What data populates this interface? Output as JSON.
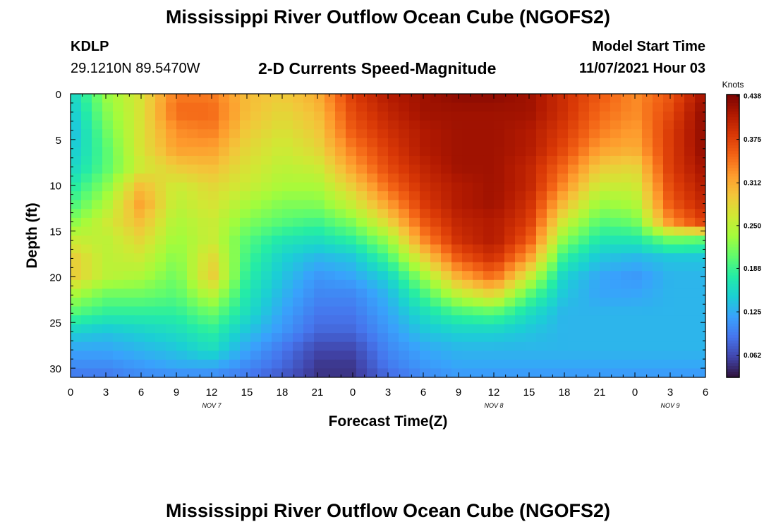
{
  "header": {
    "title": "Mississippi River Outflow Ocean Cube (NGOFS2)",
    "station_id": "KDLP",
    "coordinates": "29.1210N  89.5470W",
    "subtitle": "2-D Currents Speed-Magnitude",
    "model_start_label": "Model Start Time",
    "model_start_value": "11/07/2021 Hour 03"
  },
  "footer": {
    "title": "Mississippi River Outflow Ocean Cube (NGOFS2)"
  },
  "chart_data": {
    "type": "heatmap",
    "title": "2-D Currents Speed-Magnitude",
    "xlabel": "Forecast Time(Z)",
    "ylabel": "Depth (ft)",
    "x_range_hours": [
      0,
      54
    ],
    "x_tick_labels": [
      "0",
      "3",
      "6",
      "9",
      "12",
      "15",
      "18",
      "21",
      "0",
      "3",
      "6",
      "9",
      "12",
      "15",
      "18",
      "21",
      "0",
      "3",
      "6"
    ],
    "date_labels": [
      {
        "label": "NOV 7",
        "at_hour": 12
      },
      {
        "label": "NOV 8",
        "at_hour": 36
      },
      {
        "label": "NOV 9",
        "at_hour": 51
      }
    ],
    "y_range_ft": [
      0,
      31
    ],
    "y_ticks": [
      "0",
      "5",
      "10",
      "15",
      "20",
      "25",
      "30"
    ],
    "y_tick_values": [
      0,
      5,
      10,
      15,
      20,
      25,
      30
    ],
    "colorbar": {
      "unit": "Knots",
      "min": 0.03,
      "max": 0.44,
      "ticks": [
        "0.438",
        "0.375",
        "0.312",
        "0.250",
        "0.188",
        "0.125",
        "0.062"
      ],
      "tick_values": [
        0.438,
        0.375,
        0.312,
        0.25,
        0.188,
        0.125,
        0.062
      ]
    },
    "colormap": [
      "#30123b",
      "#4145ab",
      "#4675ed",
      "#39a2fc",
      "#1bcfd4",
      "#24eca6",
      "#61fc6c",
      "#a4fc3b",
      "#d1e834",
      "#f3c63a",
      "#fe9b2d",
      "#f36315",
      "#d93806",
      "#b11901",
      "#7a0402"
    ],
    "grid_depths_ft": [
      0,
      2,
      4,
      6,
      8,
      10,
      12,
      14,
      16,
      18,
      20,
      22,
      24,
      26,
      28,
      30,
      31
    ],
    "grid_hours": [
      0,
      3,
      6,
      9,
      12,
      15,
      18,
      21,
      24,
      27,
      30,
      33,
      36,
      39,
      42,
      45,
      48,
      51,
      54
    ],
    "speed_grid_knots": [
      [
        0.15,
        0.23,
        0.27,
        0.34,
        0.34,
        0.3,
        0.29,
        0.31,
        0.38,
        0.41,
        0.42,
        0.43,
        0.43,
        0.42,
        0.39,
        0.36,
        0.33,
        0.36,
        0.42
      ],
      [
        0.14,
        0.22,
        0.27,
        0.35,
        0.35,
        0.3,
        0.28,
        0.3,
        0.37,
        0.4,
        0.42,
        0.42,
        0.42,
        0.42,
        0.39,
        0.35,
        0.33,
        0.37,
        0.43
      ],
      [
        0.13,
        0.21,
        0.27,
        0.33,
        0.34,
        0.29,
        0.27,
        0.29,
        0.36,
        0.39,
        0.41,
        0.42,
        0.42,
        0.41,
        0.38,
        0.34,
        0.32,
        0.38,
        0.43
      ],
      [
        0.14,
        0.2,
        0.27,
        0.32,
        0.32,
        0.28,
        0.26,
        0.28,
        0.34,
        0.38,
        0.41,
        0.42,
        0.42,
        0.41,
        0.37,
        0.32,
        0.31,
        0.38,
        0.43
      ],
      [
        0.15,
        0.2,
        0.26,
        0.29,
        0.3,
        0.27,
        0.25,
        0.26,
        0.32,
        0.37,
        0.4,
        0.42,
        0.42,
        0.4,
        0.35,
        0.29,
        0.28,
        0.38,
        0.42
      ],
      [
        0.17,
        0.22,
        0.3,
        0.26,
        0.28,
        0.26,
        0.24,
        0.24,
        0.29,
        0.35,
        0.39,
        0.41,
        0.42,
        0.4,
        0.33,
        0.26,
        0.26,
        0.37,
        0.41
      ],
      [
        0.19,
        0.24,
        0.32,
        0.25,
        0.27,
        0.24,
        0.22,
        0.22,
        0.26,
        0.32,
        0.38,
        0.41,
        0.42,
        0.39,
        0.3,
        0.23,
        0.24,
        0.36,
        0.4
      ],
      [
        0.22,
        0.26,
        0.3,
        0.24,
        0.26,
        0.22,
        0.2,
        0.19,
        0.22,
        0.28,
        0.36,
        0.4,
        0.41,
        0.38,
        0.26,
        0.2,
        0.21,
        0.33,
        0.38
      ],
      [
        0.26,
        0.25,
        0.28,
        0.23,
        0.26,
        0.2,
        0.17,
        0.16,
        0.18,
        0.23,
        0.33,
        0.39,
        0.41,
        0.36,
        0.22,
        0.17,
        0.17,
        0.21,
        0.2
      ],
      [
        0.29,
        0.25,
        0.26,
        0.22,
        0.28,
        0.19,
        0.15,
        0.13,
        0.14,
        0.19,
        0.28,
        0.36,
        0.39,
        0.32,
        0.18,
        0.14,
        0.13,
        0.14,
        0.14
      ],
      [
        0.29,
        0.25,
        0.24,
        0.21,
        0.29,
        0.18,
        0.14,
        0.11,
        0.12,
        0.15,
        0.23,
        0.31,
        0.35,
        0.26,
        0.15,
        0.12,
        0.11,
        0.13,
        0.13
      ],
      [
        0.24,
        0.21,
        0.21,
        0.2,
        0.25,
        0.17,
        0.13,
        0.1,
        0.1,
        0.13,
        0.19,
        0.25,
        0.28,
        0.2,
        0.14,
        0.12,
        0.12,
        0.13,
        0.13
      ],
      [
        0.2,
        0.18,
        0.18,
        0.18,
        0.21,
        0.16,
        0.12,
        0.09,
        0.09,
        0.12,
        0.16,
        0.19,
        0.2,
        0.16,
        0.13,
        0.13,
        0.13,
        0.13,
        0.13
      ],
      [
        0.15,
        0.14,
        0.15,
        0.16,
        0.18,
        0.14,
        0.11,
        0.08,
        0.08,
        0.11,
        0.14,
        0.15,
        0.15,
        0.14,
        0.13,
        0.13,
        0.13,
        0.13,
        0.13
      ],
      [
        0.12,
        0.12,
        0.13,
        0.14,
        0.16,
        0.12,
        0.09,
        0.06,
        0.06,
        0.1,
        0.12,
        0.13,
        0.13,
        0.13,
        0.13,
        0.13,
        0.13,
        0.13,
        0.13
      ],
      [
        0.1,
        0.1,
        0.11,
        0.12,
        0.12,
        0.1,
        0.08,
        0.05,
        0.05,
        0.09,
        0.11,
        0.12,
        0.12,
        0.12,
        0.12,
        0.12,
        0.12,
        0.12,
        0.12
      ],
      [
        0.09,
        0.09,
        0.1,
        0.1,
        0.1,
        0.09,
        0.07,
        0.05,
        0.05,
        0.08,
        0.1,
        0.11,
        0.11,
        0.11,
        0.11,
        0.11,
        0.11,
        0.11,
        0.11
      ]
    ]
  }
}
